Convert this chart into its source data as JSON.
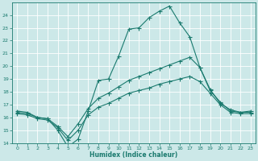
{
  "xlabel": "Humidex (Indice chaleur)",
  "x_ticks": [
    0,
    1,
    2,
    3,
    4,
    5,
    6,
    7,
    8,
    9,
    10,
    11,
    12,
    13,
    14,
    15,
    16,
    17,
    18,
    19,
    20,
    21,
    22,
    23
  ],
  "xlim": [
    -0.5,
    23.5
  ],
  "ylim": [
    14,
    25
  ],
  "y_ticks": [
    14,
    15,
    16,
    17,
    18,
    19,
    20,
    21,
    22,
    23,
    24
  ],
  "bg_color": "#cce8e8",
  "grid_color": "#ffffff",
  "line_color": "#1a7a6e",
  "line1_x": [
    0,
    1,
    2,
    3,
    4,
    5,
    6,
    7,
    8,
    9,
    10,
    11,
    12,
    13,
    14,
    15,
    16,
    17,
    18,
    19,
    20,
    21,
    22,
    23
  ],
  "line1_y": [
    16.5,
    16.4,
    16.0,
    15.9,
    15.0,
    13.7,
    14.3,
    16.5,
    18.9,
    19.0,
    20.8,
    22.9,
    23.0,
    23.8,
    24.3,
    24.7,
    23.4,
    22.3,
    19.9,
    18.1,
    17.2,
    16.5,
    16.4,
    16.5
  ],
  "line2_x": [
    0,
    1,
    2,
    3,
    4,
    5,
    6,
    7,
    8,
    9,
    10,
    11,
    12,
    13,
    14,
    15,
    16,
    17,
    18,
    19,
    20,
    21,
    22,
    23
  ],
  "line2_y": [
    16.4,
    16.3,
    16.0,
    15.9,
    15.3,
    14.5,
    15.5,
    16.7,
    17.5,
    17.9,
    18.4,
    18.9,
    19.2,
    19.5,
    19.8,
    20.1,
    20.4,
    20.7,
    19.9,
    18.2,
    17.1,
    16.6,
    16.4,
    16.4
  ],
  "line3_x": [
    0,
    1,
    2,
    3,
    4,
    5,
    6,
    7,
    8,
    9,
    10,
    11,
    12,
    13,
    14,
    15,
    16,
    17,
    18,
    19,
    20,
    21,
    22,
    23
  ],
  "line3_y": [
    16.3,
    16.2,
    15.9,
    15.8,
    15.2,
    14.2,
    15.0,
    16.2,
    16.8,
    17.1,
    17.5,
    17.9,
    18.1,
    18.3,
    18.6,
    18.8,
    19.0,
    19.2,
    18.8,
    17.9,
    17.0,
    16.4,
    16.3,
    16.3
  ]
}
